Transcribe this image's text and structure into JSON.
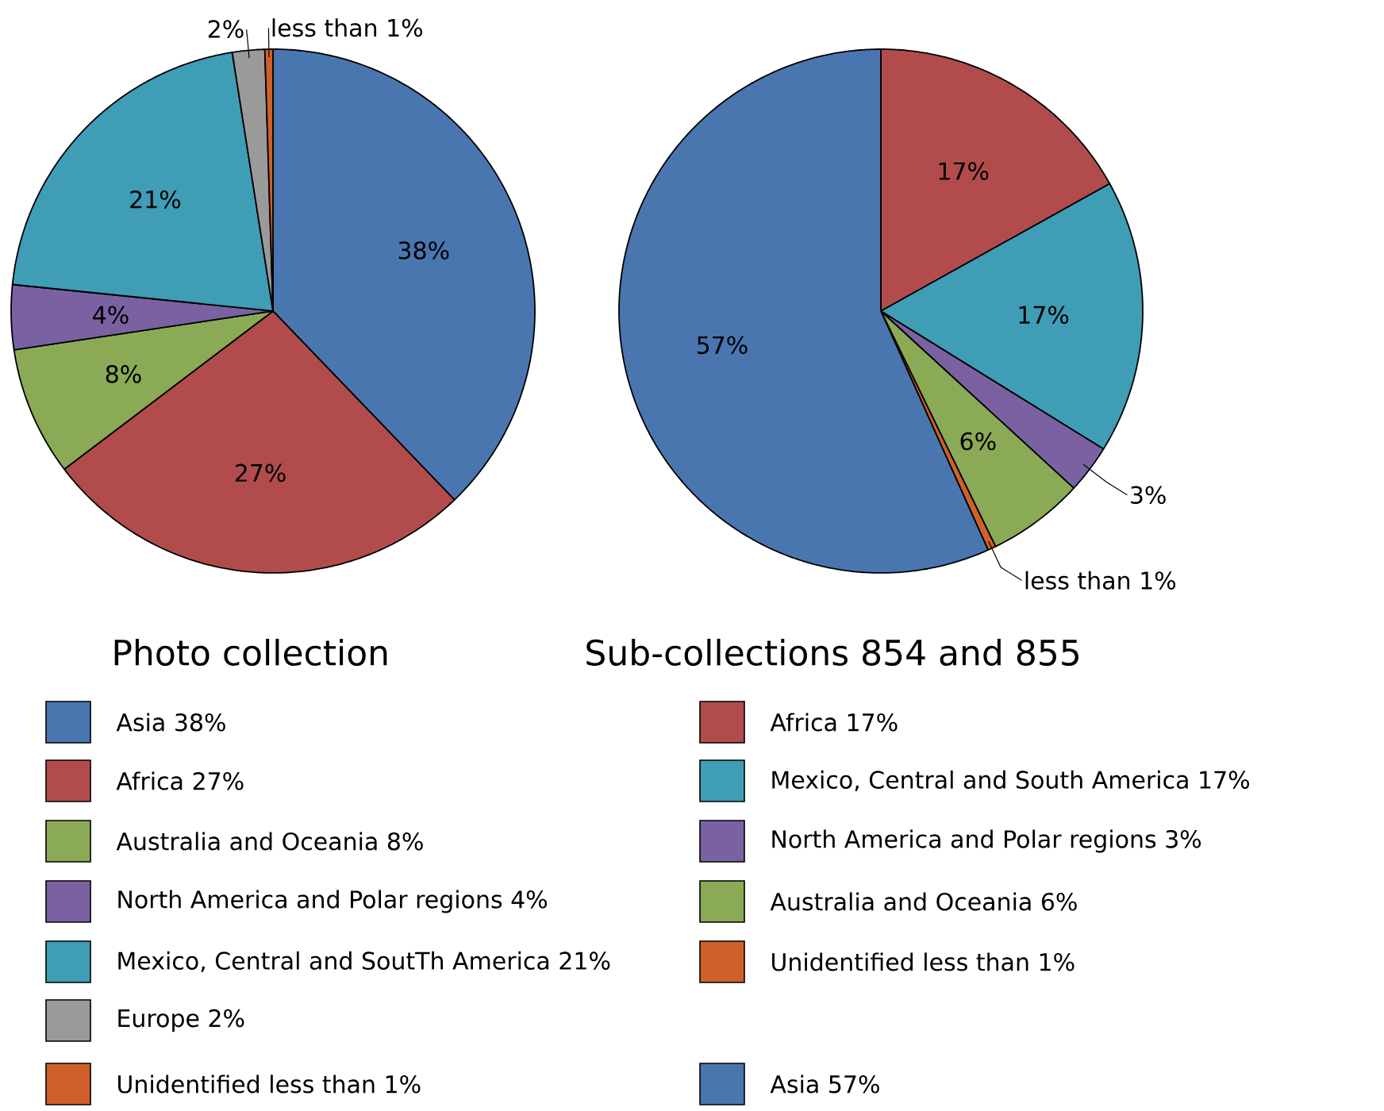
{
  "chart_data": [
    {
      "type": "pie",
      "title": "Photo collection",
      "legend": "bottom",
      "categories": [
        "Asia",
        "Africa",
        "Australia and Oceania",
        "North America and Polar regions",
        "Mexico, Central and SoutTh America",
        "Europe",
        "Unidentified"
      ],
      "values": [
        38,
        27,
        8,
        4,
        21,
        2,
        0.5
      ],
      "value_labels": [
        "38%",
        "27%",
        "8%",
        "4%",
        "21%",
        "2%",
        "less than 1%"
      ],
      "colors": [
        "#4a76b0",
        "#b24c4c",
        "#8aaa55",
        "#7a62a2",
        "#3f9db6",
        "#9a9a9a",
        "#d0602a"
      ]
    },
    {
      "type": "pie",
      "title": "Sub-collections 854 and 855",
      "legend": "bottom",
      "categories": [
        "Africa",
        "Mexico, Central and South America",
        "North America and Polar regions",
        "Australia and Oceania",
        "Unidentified",
        "Asia"
      ],
      "values": [
        17,
        17,
        3,
        6,
        0.5,
        57
      ],
      "value_labels": [
        "17%",
        "17%",
        "3%",
        "6%",
        "less than 1%",
        "57%"
      ],
      "colors": [
        "#b24c4c",
        "#3f9db6",
        "#7a62a2",
        "#8aaa55",
        "#d0602a",
        "#4a76b0"
      ]
    }
  ]
}
